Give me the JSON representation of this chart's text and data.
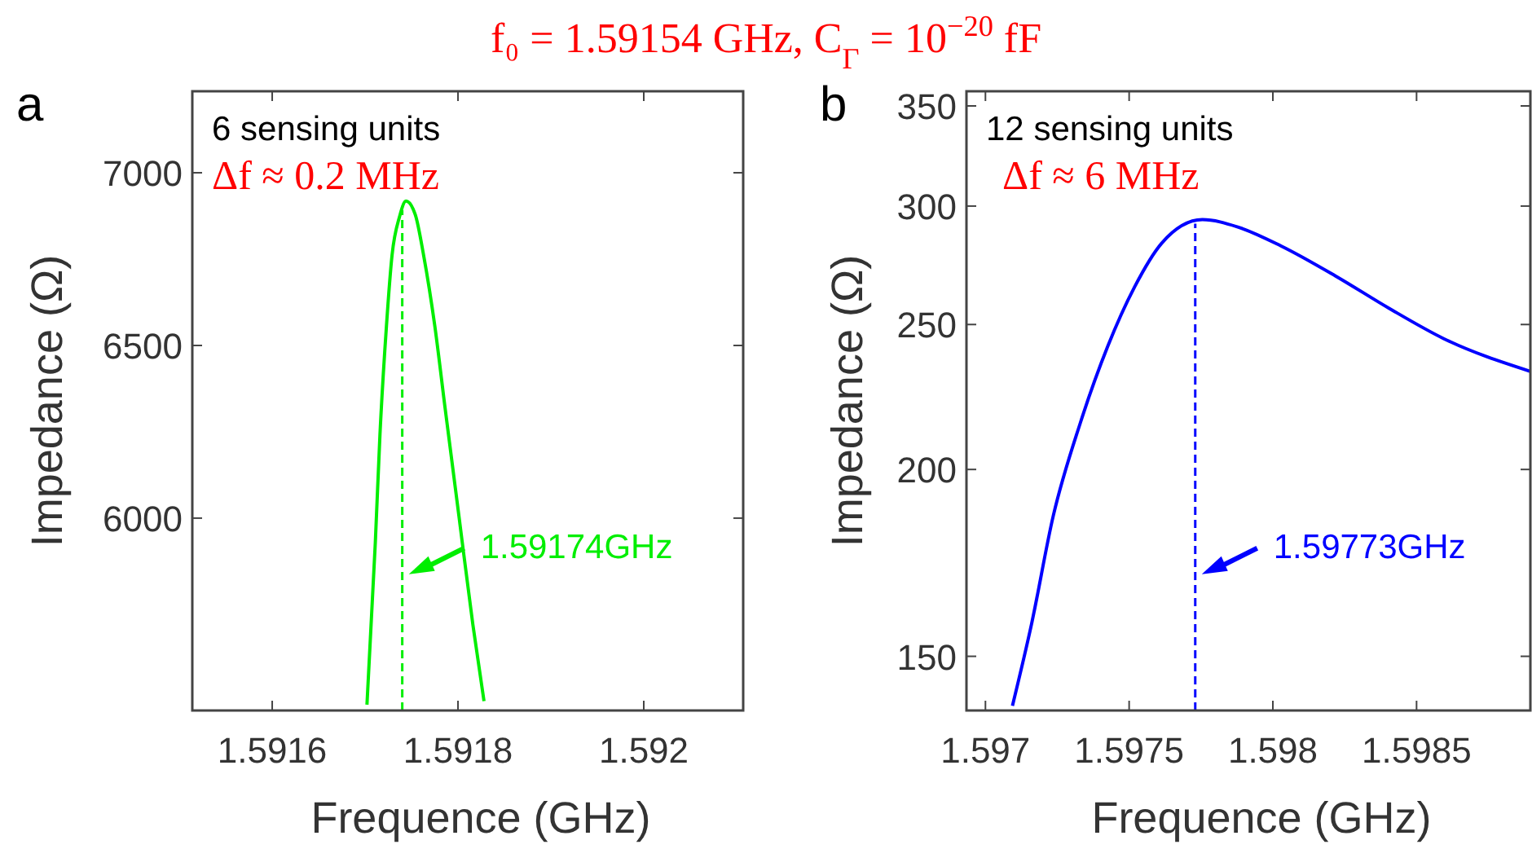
{
  "chart_data": [
    {
      "type": "line",
      "title": "f₀ = 1.59154 GHz,  C$_{Γ}$ = 10$^{−20}$ fF",
      "xlabel": "Frequence (GHz)",
      "ylabel": "Impedance (Ω)",
      "annotations": [
        "a",
        "6 sensing units",
        "Δf ≈ 0.2 MHz"
      ],
      "xlim": [
        1.591514,
        1.592107
      ],
      "ylim": [
        5443,
        7236
      ],
      "xticks": [
        1.5916,
        1.5918,
        1.592
      ],
      "yticks": [
        6000,
        6500,
        7000
      ],
      "grid": false,
      "line_style": "solid",
      "series": [
        {
          "color": "#00ee00",
          "x": [
            1.591702,
            1.591711,
            1.591716,
            1.591723,
            1.591729,
            1.591737,
            1.591744,
            1.591754,
            1.591763,
            1.591775,
            1.591786,
            1.591801,
            1.591816,
            1.591828
          ],
          "values": [
            5460,
            5929,
            6242,
            6557,
            6761,
            6872,
            6918,
            6879,
            6761,
            6557,
            6321,
            6006,
            5692,
            5470
          ]
        }
      ],
      "ref_lines": [
        {
          "axis": "x",
          "value": 1.59174,
          "label": "1.59174GHz",
          "color": "#00ee00",
          "line_style": "dashed"
        }
      ]
    },
    {
      "type": "line",
      "xlabel": "Frequence (GHz)",
      "ylabel": "Impedance (Ω)",
      "annotations": [
        "b",
        "12 sensing units",
        "Δf ≈ 6 MHz"
      ],
      "xlim": [
        1.596934,
        1.598896
      ],
      "ylim": [
        138,
        358
      ],
      "xticks": [
        1.597,
        1.5975,
        1.598,
        1.5985
      ],
      "yticks": [
        150,
        200,
        250,
        300,
        350
      ],
      "log": "y",
      "grid": false,
      "line_style": "solid",
      "series": [
        {
          "color": "#0000ff",
          "x": [
            1.597094,
            1.59716,
            1.597236,
            1.59733,
            1.597425,
            1.597519,
            1.597613,
            1.597755,
            1.597878,
            1.598029,
            1.598218,
            1.598406,
            1.598595,
            1.598896
          ],
          "values": [
            139,
            157.5,
            186.2,
            214.8,
            241.6,
            264.9,
            283.3,
            293.8,
            290.5,
            282.1,
            269.4,
            256.2,
            244.6,
            232.6
          ]
        }
      ],
      "ref_lines": [
        {
          "axis": "x",
          "value": 1.59773,
          "label": "1.59773GHz",
          "color": "#0000ff",
          "line_style": "dashed"
        }
      ]
    }
  ]
}
